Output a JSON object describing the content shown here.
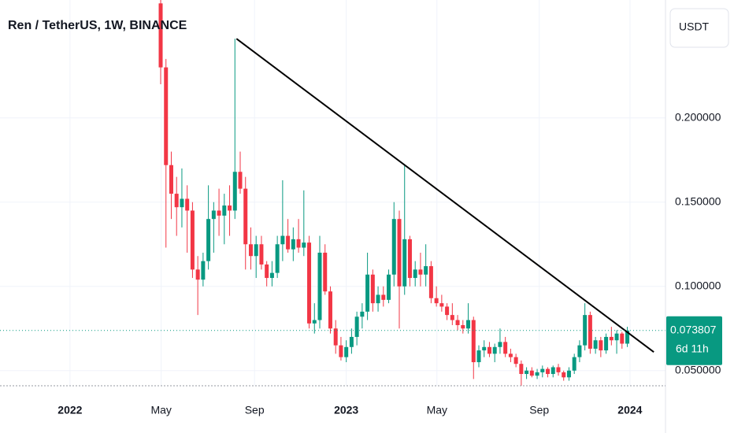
{
  "chart_data": {
    "type": "candlestick",
    "title": "Ren / TetherUS, 1W, BINANCE",
    "currency": "USDT",
    "up_color": "#089981",
    "down_color": "#f23645",
    "grid": true,
    "xlim": [
      -16.3,
      109.2
    ],
    "ylim": [
      0.041,
      0.27
    ],
    "xticks": [
      {
        "value": -3.1,
        "label": "2022"
      },
      {
        "value": 14.1,
        "label": "May"
      },
      {
        "value": 31.7,
        "label": "Sep"
      },
      {
        "value": 49,
        "label": "2023"
      },
      {
        "value": 66.1,
        "label": "May"
      },
      {
        "value": 85.4,
        "label": "Sep"
      },
      {
        "value": 102.5,
        "label": "2024"
      }
    ],
    "yticks": [
      {
        "value": 0.05,
        "label": "0.050000"
      },
      {
        "value": 0.1,
        "label": "0.100000"
      },
      {
        "value": 0.15,
        "label": "0.150000"
      },
      {
        "value": 0.2,
        "label": "0.200000"
      }
    ],
    "x": [
      14,
      15,
      16,
      17,
      18,
      19,
      20,
      21,
      22,
      23,
      24,
      25,
      26,
      27,
      28,
      29,
      30,
      31,
      32,
      33,
      34,
      35,
      36,
      37,
      38,
      39,
      40,
      41,
      42,
      43,
      44,
      45,
      46,
      47,
      48,
      49,
      50,
      51,
      52,
      53,
      54,
      55,
      56,
      57,
      58,
      59,
      60,
      61,
      62,
      63,
      64,
      65,
      66,
      67,
      68,
      69,
      70,
      71,
      72,
      73,
      74,
      75,
      76,
      77,
      78,
      79,
      80,
      81,
      82,
      83,
      84,
      85,
      86,
      87,
      88,
      89,
      90,
      91,
      92,
      93,
      94,
      95,
      96,
      97,
      98,
      99,
      100,
      101,
      102
    ],
    "open": [
      0.268,
      0.23,
      0.172,
      0.155,
      0.147,
      0.152,
      0.145,
      0.11,
      0.104,
      0.115,
      0.14,
      0.145,
      0.142,
      0.148,
      0.145,
      0.168,
      0.158,
      0.125,
      0.118,
      0.125,
      0.113,
      0.105,
      0.108,
      0.125,
      0.13,
      0.122,
      0.128,
      0.123,
      0.126,
      0.078,
      0.08,
      0.12,
      0.097,
      0.075,
      0.065,
      0.058,
      0.064,
      0.07,
      0.082,
      0.085,
      0.107,
      0.09,
      0.095,
      0.092,
      0.107,
      0.14,
      0.1,
      0.128,
      0.105,
      0.11,
      0.107,
      0.112,
      0.093,
      0.09,
      0.088,
      0.083,
      0.08,
      0.077,
      0.075,
      0.08,
      0.055,
      0.062,
      0.064,
      0.06,
      0.064,
      0.067,
      0.06,
      0.058,
      0.054,
      0.048,
      0.05,
      0.047,
      0.049,
      0.051,
      0.048,
      0.052,
      0.049,
      0.046,
      0.05,
      0.058,
      0.065,
      0.083,
      0.063,
      0.068,
      0.062,
      0.07,
      0.068,
      0.072,
      0.066
    ],
    "high": [
      0.27,
      0.235,
      0.18,
      0.165,
      0.17,
      0.16,
      0.15,
      0.118,
      0.12,
      0.16,
      0.15,
      0.158,
      0.155,
      0.16,
      0.247,
      0.18,
      0.165,
      0.135,
      0.13,
      0.13,
      0.115,
      0.115,
      0.13,
      0.163,
      0.14,
      0.135,
      0.14,
      0.157,
      0.13,
      0.09,
      0.13,
      0.125,
      0.1,
      0.08,
      0.07,
      0.068,
      0.075,
      0.085,
      0.09,
      0.12,
      0.11,
      0.1,
      0.1,
      0.11,
      0.15,
      0.145,
      0.172,
      0.13,
      0.115,
      0.12,
      0.125,
      0.115,
      0.1,
      0.095,
      0.09,
      0.09,
      0.083,
      0.08,
      0.09,
      0.082,
      0.065,
      0.068,
      0.067,
      0.066,
      0.075,
      0.07,
      0.063,
      0.06,
      0.056,
      0.052,
      0.052,
      0.051,
      0.053,
      0.052,
      0.053,
      0.054,
      0.05,
      0.052,
      0.06,
      0.068,
      0.09,
      0.085,
      0.07,
      0.07,
      0.072,
      0.076,
      0.074,
      0.073,
      0.076
    ],
    "low": [
      0.22,
      0.123,
      0.14,
      0.13,
      0.135,
      0.12,
      0.105,
      0.083,
      0.1,
      0.11,
      0.12,
      0.13,
      0.125,
      0.13,
      0.14,
      0.155,
      0.11,
      0.11,
      0.105,
      0.11,
      0.1,
      0.1,
      0.105,
      0.115,
      0.12,
      0.115,
      0.12,
      0.118,
      0.075,
      0.072,
      0.075,
      0.095,
      0.072,
      0.06,
      0.056,
      0.055,
      0.06,
      0.065,
      0.075,
      0.08,
      0.085,
      0.085,
      0.088,
      0.09,
      0.1,
      0.075,
      0.095,
      0.1,
      0.1,
      0.1,
      0.1,
      0.09,
      0.088,
      0.085,
      0.08,
      0.077,
      0.074,
      0.072,
      0.072,
      0.045,
      0.052,
      0.058,
      0.058,
      0.055,
      0.06,
      0.058,
      0.055,
      0.052,
      0.041,
      0.045,
      0.046,
      0.045,
      0.046,
      0.046,
      0.046,
      0.047,
      0.044,
      0.044,
      0.048,
      0.055,
      0.062,
      0.06,
      0.06,
      0.058,
      0.06,
      0.065,
      0.06,
      0.063,
      0.064
    ],
    "close": [
      0.23,
      0.172,
      0.155,
      0.147,
      0.152,
      0.145,
      0.11,
      0.104,
      0.115,
      0.14,
      0.145,
      0.142,
      0.148,
      0.145,
      0.168,
      0.158,
      0.125,
      0.118,
      0.125,
      0.113,
      0.105,
      0.108,
      0.125,
      0.13,
      0.122,
      0.128,
      0.123,
      0.126,
      0.078,
      0.08,
      0.12,
      0.097,
      0.075,
      0.065,
      0.058,
      0.064,
      0.07,
      0.082,
      0.085,
      0.107,
      0.09,
      0.095,
      0.092,
      0.107,
      0.14,
      0.1,
      0.128,
      0.105,
      0.11,
      0.107,
      0.112,
      0.093,
      0.09,
      0.088,
      0.083,
      0.08,
      0.077,
      0.075,
      0.08,
      0.055,
      0.062,
      0.064,
      0.06,
      0.064,
      0.067,
      0.06,
      0.058,
      0.054,
      0.048,
      0.05,
      0.047,
      0.049,
      0.051,
      0.048,
      0.052,
      0.049,
      0.046,
      0.05,
      0.058,
      0.065,
      0.083,
      0.063,
      0.068,
      0.062,
      0.07,
      0.068,
      0.072,
      0.066,
      0.0738
    ],
    "trendline": {
      "x": [
        28.3,
        107
      ],
      "y": [
        0.247,
        0.061
      ],
      "color": "#000000"
    },
    "last_price": {
      "value": 0.073807,
      "label": "0.073807"
    },
    "countdown": "6d 11h"
  }
}
